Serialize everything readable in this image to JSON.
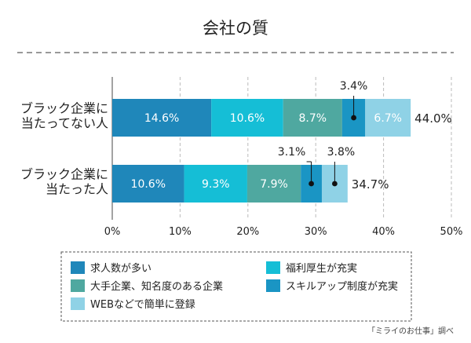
{
  "chart_data": {
    "type": "bar",
    "orientation": "horizontal",
    "stacked": true,
    "title": "会社の質",
    "categories": [
      [
        "ブラック企業に",
        "当たってない人"
      ],
      [
        "ブラック企業に",
        "当たった人"
      ]
    ],
    "series": [
      {
        "name": "求人数が多い",
        "values": [
          14.6,
          10.6
        ],
        "labels": [
          "14.6%",
          "10.6%"
        ],
        "color": "#1f87ba"
      },
      {
        "name": "福利厚生が充実",
        "values": [
          10.6,
          9.3
        ],
        "labels": [
          "10.6%",
          "9.3%"
        ],
        "color": "#15bed6"
      },
      {
        "name": "大手企業、知名度のある企業",
        "values": [
          8.7,
          7.9
        ],
        "labels": [
          "8.7%",
          "7.9%"
        ],
        "color": "#4fa8a0"
      },
      {
        "name": "スキルアップ制度が充実",
        "values": [
          3.4,
          3.1
        ],
        "labels": [
          "3.4%",
          "3.1%"
        ],
        "color": "#1a95c4"
      },
      {
        "name": "WEBなどで簡単に登録",
        "values": [
          6.7,
          3.8
        ],
        "labels": [
          "6.7%",
          "3.8%"
        ],
        "color": "#8fd2e6"
      }
    ],
    "totals": [
      "44.0%",
      "34.7%"
    ],
    "xlim": [
      0,
      50
    ],
    "xticks": [
      0,
      10,
      20,
      30,
      40,
      50
    ],
    "xtick_labels": [
      "0%",
      "10%",
      "20%",
      "30%",
      "40%",
      "50%"
    ],
    "grid": true,
    "legend_position": "bottom"
  },
  "source": "「ミライのお仕事」調べ"
}
